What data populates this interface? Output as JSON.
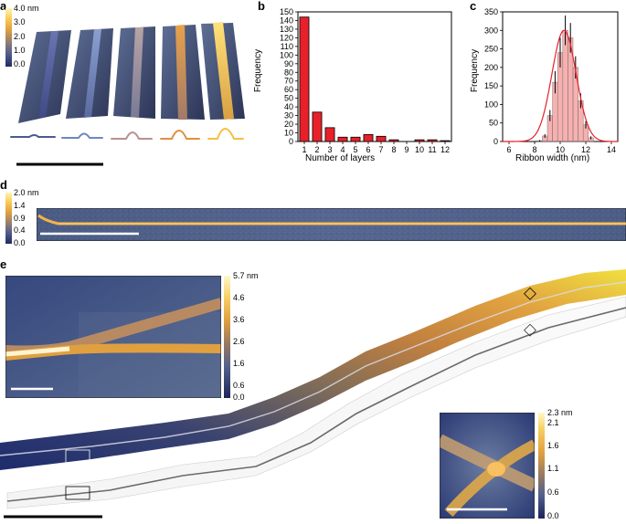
{
  "panels": {
    "a": {
      "letter": "a",
      "colorbar": {
        "ticks": [
          "4.0 nm",
          "3.0",
          "2.0",
          "1.0",
          "0.0"
        ]
      }
    },
    "d": {
      "letter": "d",
      "colorbar": {
        "ticks": [
          "2.0 nm",
          "1.4",
          "0.9",
          "0.4",
          "0.0"
        ]
      }
    },
    "e": {
      "letter": "e",
      "inset_left_colorbar": {
        "ticks": [
          "5.7 nm",
          "4.6",
          "3.6",
          "2.6",
          "1.6",
          "0.6",
          "0.0"
        ]
      },
      "inset_right_colorbar": {
        "ticks": [
          "2.3 nm",
          "2.1",
          "1.6",
          "1.1",
          "0.6",
          "0.0"
        ]
      }
    }
  },
  "chart_data": [
    {
      "panel": "b",
      "type": "bar",
      "xlabel": "Number of layers",
      "ylabel": "Frequency",
      "categories": [
        "1",
        "2",
        "3",
        "4",
        "5",
        "6",
        "7",
        "8",
        "9",
        "10",
        "11",
        "12"
      ],
      "values": [
        144,
        34,
        16,
        5,
        5,
        8,
        6,
        2,
        0,
        2,
        2,
        1
      ],
      "ylim": [
        0,
        150
      ],
      "yticks": [
        "0",
        "10",
        "20",
        "30",
        "40",
        "50",
        "60",
        "70",
        "80",
        "90",
        "100",
        "110",
        "120",
        "130",
        "140",
        "150"
      ],
      "color": "#e8202a"
    },
    {
      "panel": "c",
      "type": "bar",
      "xlabel": "Ribbon width (nm)",
      "ylabel": "Frequency",
      "x": [
        8.4,
        8.8,
        9.2,
        9.6,
        10.0,
        10.4,
        10.8,
        11.2,
        11.6,
        12.0,
        12.4
      ],
      "values": [
        2,
        15,
        70,
        160,
        240,
        300,
        280,
        200,
        110,
        45,
        10
      ],
      "errors": [
        2,
        5,
        15,
        30,
        40,
        40,
        40,
        30,
        20,
        10,
        4
      ],
      "fit": {
        "type": "gaussian",
        "center": 10.3,
        "sigma": 0.95,
        "amplitude": 300,
        "color": "#e8202a"
      },
      "xlim": [
        5.5,
        14.5
      ],
      "ylim": [
        0,
        350
      ],
      "xticks": [
        "6",
        "8",
        "10",
        "12",
        "14"
      ],
      "yticks": [
        "0",
        "50",
        "100",
        "150",
        "200",
        "250",
        "300",
        "350"
      ],
      "color": "#f07070"
    }
  ]
}
